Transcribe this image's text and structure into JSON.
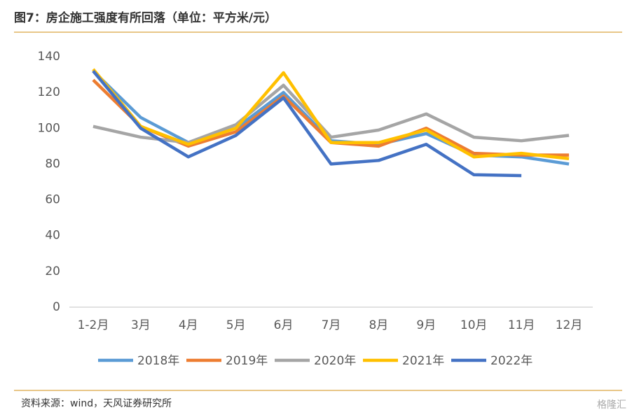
{
  "chart_data": {
    "type": "line",
    "title": "图7：房企施工强度有所回落（单位：平方米/元）",
    "source": "资料来源：wind，天风证券研究所",
    "watermark": "格隆汇",
    "categories": [
      "1-2月",
      "3月",
      "4月",
      "5月",
      "6月",
      "7月",
      "8月",
      "9月",
      "10月",
      "11月",
      "12月"
    ],
    "series": [
      {
        "name": "2018年",
        "color": "#5b9bd5",
        "values": [
          132,
          106,
          92,
          100,
          120,
          93,
          91,
          97,
          85,
          84,
          80
        ]
      },
      {
        "name": "2019年",
        "color": "#ed7d31",
        "values": [
          127,
          101,
          90,
          98,
          118,
          92,
          90,
          100,
          86,
          85,
          85
        ]
      },
      {
        "name": "2020年",
        "color": "#a5a5a5",
        "values": [
          101,
          95,
          92,
          102,
          124,
          95,
          99,
          108,
          95,
          93,
          96
        ]
      },
      {
        "name": "2021年",
        "color": "#ffc000",
        "values": [
          133,
          101,
          91,
          100,
          131,
          92,
          92,
          99,
          84,
          86,
          83
        ]
      },
      {
        "name": "2022年",
        "color": "#4472c4",
        "values": [
          132,
          100,
          84,
          96,
          117,
          80,
          82,
          91,
          74,
          73.5,
          null
        ]
      }
    ],
    "ylim": [
      0,
      140
    ],
    "yticks": [
      0,
      20,
      40,
      60,
      80,
      100,
      120,
      140
    ],
    "grid": false
  }
}
